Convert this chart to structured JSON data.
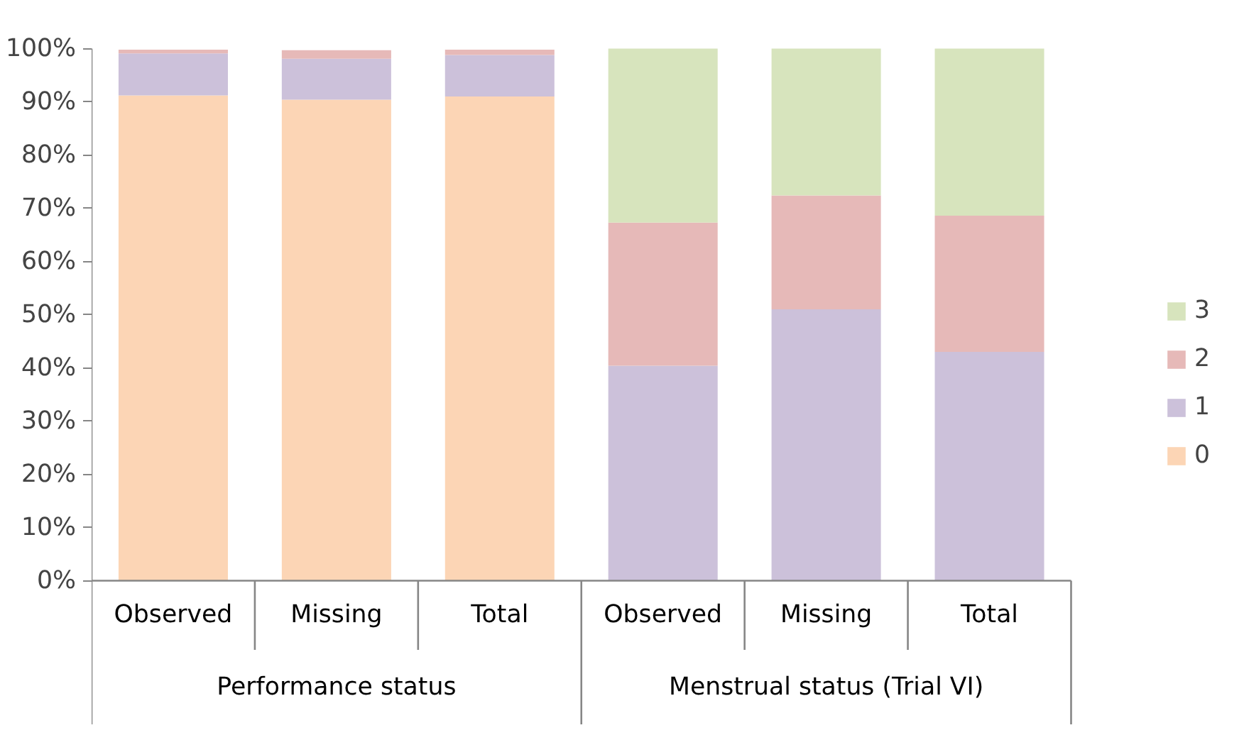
{
  "chart_data": {
    "type": "bar",
    "stacked": true,
    "categories": [
      "Observed",
      "Missing",
      "Total",
      "Observed",
      "Missing",
      "Total"
    ],
    "series": [
      {
        "name": "0",
        "color": "#fcd5b5",
        "values": [
          91.2,
          90.4,
          91.0,
          0,
          0,
          0
        ]
      },
      {
        "name": "1",
        "color": "#ccc1da",
        "values": [
          7.9,
          7.7,
          7.8,
          40.4,
          51.0,
          43.0
        ]
      },
      {
        "name": "2",
        "color": "#e6b9b8",
        "values": [
          0.7,
          1.6,
          1.0,
          26.9,
          21.4,
          25.6
        ]
      },
      {
        "name": "3",
        "color": "#d7e4bd",
        "values": [
          null,
          null,
          null,
          32.7,
          27.6,
          31.4
        ]
      }
    ],
    "ylim": [
      0,
      100
    ],
    "yticks": [
      {
        "value": 0,
        "label": "0%"
      },
      {
        "value": 10,
        "label": "10%"
      },
      {
        "value": 20,
        "label": "20%"
      },
      {
        "value": 30,
        "label": "30%"
      },
      {
        "value": 40,
        "label": "40%"
      },
      {
        "value": 50,
        "label": "50%"
      },
      {
        "value": 60,
        "label": "60%"
      },
      {
        "value": 70,
        "label": "70%"
      },
      {
        "value": 80,
        "label": "80%"
      },
      {
        "value": 90,
        "label": "90%"
      },
      {
        "value": 100,
        "label": "100%"
      }
    ],
    "annotations": [
      "Performance status",
      "Menstrual status (Trial VI)"
    ],
    "grid": false,
    "legend": "right"
  }
}
